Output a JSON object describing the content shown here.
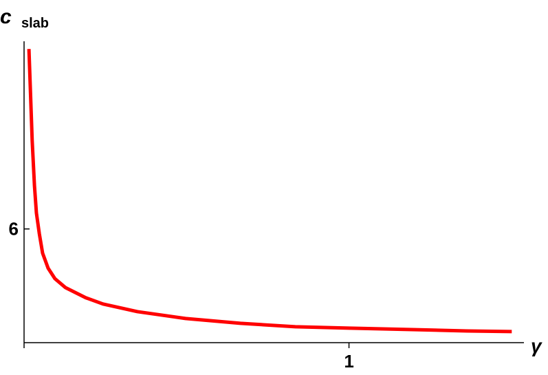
{
  "chart_data": {
    "type": "line",
    "ylabel": "c",
    "ylabel_subscript": "slab",
    "xlabel": "γ",
    "xlim": [
      0,
      1.53
    ],
    "ylim": [
      2,
      12.6
    ],
    "xticks": [
      1
    ],
    "yticks": [
      6
    ],
    "series": [
      {
        "color": "#ff0000",
        "x": [
          0.015,
          0.025,
          0.032,
          0.038,
          0.047,
          0.057,
          0.074,
          0.095,
          0.127,
          0.19,
          0.243,
          0.349,
          0.497,
          0.666,
          0.835,
          1.0,
          1.195,
          1.364,
          1.501
        ],
        "values": [
          12.33,
          9.1,
          7.52,
          6.56,
          5.83,
          5.15,
          4.62,
          4.25,
          3.94,
          3.58,
          3.36,
          3.09,
          2.85,
          2.68,
          2.56,
          2.51,
          2.46,
          2.41,
          2.39
        ]
      }
    ]
  }
}
